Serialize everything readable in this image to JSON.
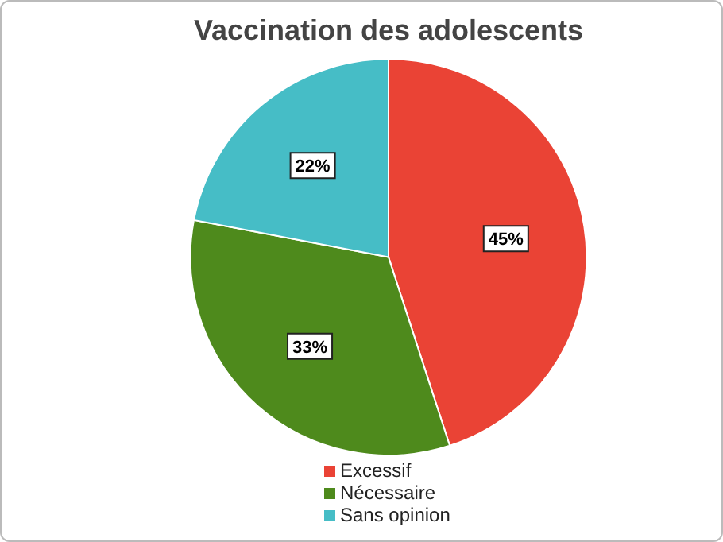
{
  "chart_data": {
    "type": "pie",
    "title": "Vaccination des adolescents",
    "categories": [
      "Excessif",
      "Nécessaire",
      "Sans opinion"
    ],
    "values": [
      45,
      33,
      22
    ],
    "colors": [
      "#ea4335",
      "#4e8a1c",
      "#46bdc6"
    ],
    "value_labels": [
      "45%",
      "33%",
      "22%"
    ],
    "legend": "bottom"
  }
}
